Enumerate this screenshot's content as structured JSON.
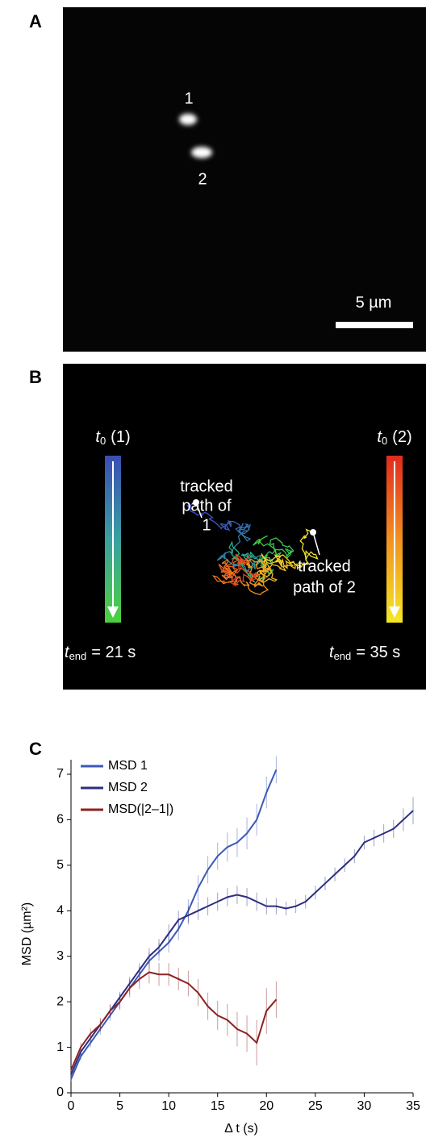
{
  "panels": {
    "a": {
      "label": "A",
      "spot_1": "1",
      "spot_2": "2",
      "scale": "5 µm"
    },
    "b": {
      "label": "B",
      "left_start": {
        "var": "t",
        "sub": "0",
        "suffix": "(1)"
      },
      "left_end": {
        "var": "t",
        "sub": "end",
        "suffix": "= 21 s"
      },
      "right_start": {
        "var": "t",
        "sub": "0",
        "suffix": "(2)"
      },
      "right_end": {
        "var": "t",
        "sub": "end",
        "suffix": "= 35 s"
      },
      "path_1_note": [
        "tracked",
        "path of",
        "1"
      ],
      "path_2_note": [
        "tracked",
        "path of 2"
      ]
    },
    "c": {
      "label": "C"
    }
  },
  "chart_data": {
    "type": "line",
    "x_label": "Δ t (s)",
    "y_label": "MSD (µm²)",
    "xlim": [
      0,
      35
    ],
    "xticks": [
      0,
      5,
      10,
      15,
      20,
      25,
      30,
      35
    ],
    "ylim": [
      0,
      7
    ],
    "yticks": [
      0,
      1,
      2,
      3,
      4,
      5,
      6,
      7
    ],
    "legend": "upper left",
    "series": [
      {
        "name": "MSD 1",
        "color": "#3b58b8",
        "x": [
          0,
          1,
          2,
          3,
          4,
          5,
          6,
          7,
          8,
          9,
          10,
          11,
          12,
          13,
          14,
          15,
          16,
          17,
          18,
          19,
          20,
          21
        ],
        "values": [
          0.3,
          0.8,
          1.1,
          1.4,
          1.7,
          2.0,
          2.3,
          2.6,
          2.9,
          3.1,
          3.3,
          3.6,
          4.0,
          4.5,
          4.9,
          5.2,
          5.4,
          5.5,
          5.7,
          6.0,
          6.6,
          7.1
        ],
        "errors": [
          0.05,
          0.08,
          0.1,
          0.12,
          0.12,
          0.15,
          0.15,
          0.18,
          0.2,
          0.2,
          0.22,
          0.25,
          0.25,
          0.28,
          0.3,
          0.3,
          0.32,
          0.32,
          0.35,
          0.35,
          0.35,
          0.3
        ]
      },
      {
        "name": "MSD 2",
        "color": "#2b2f80",
        "x": [
          0,
          1,
          2,
          3,
          4,
          5,
          6,
          7,
          8,
          9,
          10,
          11,
          12,
          13,
          14,
          15,
          16,
          17,
          18,
          19,
          20,
          21,
          22,
          23,
          24,
          25,
          26,
          27,
          28,
          29,
          30,
          31,
          32,
          33,
          34,
          35
        ],
        "values": [
          0.4,
          0.9,
          1.2,
          1.5,
          1.8,
          2.1,
          2.4,
          2.7,
          3.0,
          3.2,
          3.5,
          3.8,
          3.9,
          4.0,
          4.1,
          4.2,
          4.3,
          4.35,
          4.3,
          4.2,
          4.1,
          4.1,
          4.05,
          4.1,
          4.2,
          4.4,
          4.6,
          4.8,
          5.0,
          5.2,
          5.5,
          5.6,
          5.7,
          5.8,
          6.0,
          6.2
        ],
        "errors": [
          0.05,
          0.08,
          0.1,
          0.1,
          0.12,
          0.12,
          0.15,
          0.15,
          0.18,
          0.18,
          0.2,
          0.2,
          0.2,
          0.2,
          0.2,
          0.2,
          0.2,
          0.2,
          0.2,
          0.2,
          0.18,
          0.18,
          0.15,
          0.15,
          0.15,
          0.15,
          0.15,
          0.15,
          0.15,
          0.15,
          0.15,
          0.18,
          0.2,
          0.2,
          0.25,
          0.3
        ]
      },
      {
        "name": "MSD(|2–1|)",
        "color": "#8c2222",
        "x": [
          0,
          1,
          2,
          3,
          4,
          5,
          6,
          7,
          8,
          9,
          10,
          11,
          12,
          13,
          14,
          15,
          16,
          17,
          18,
          19,
          20,
          21
        ],
        "values": [
          0.5,
          1.0,
          1.3,
          1.5,
          1.8,
          2.0,
          2.3,
          2.5,
          2.65,
          2.6,
          2.6,
          2.5,
          2.4,
          2.2,
          1.9,
          1.7,
          1.6,
          1.4,
          1.3,
          1.1,
          1.8,
          2.05
        ],
        "errors": [
          0.05,
          0.1,
          0.12,
          0.15,
          0.15,
          0.18,
          0.2,
          0.22,
          0.25,
          0.25,
          0.25,
          0.25,
          0.28,
          0.3,
          0.3,
          0.32,
          0.35,
          0.38,
          0.4,
          0.5,
          0.5,
          0.4
        ]
      }
    ]
  }
}
